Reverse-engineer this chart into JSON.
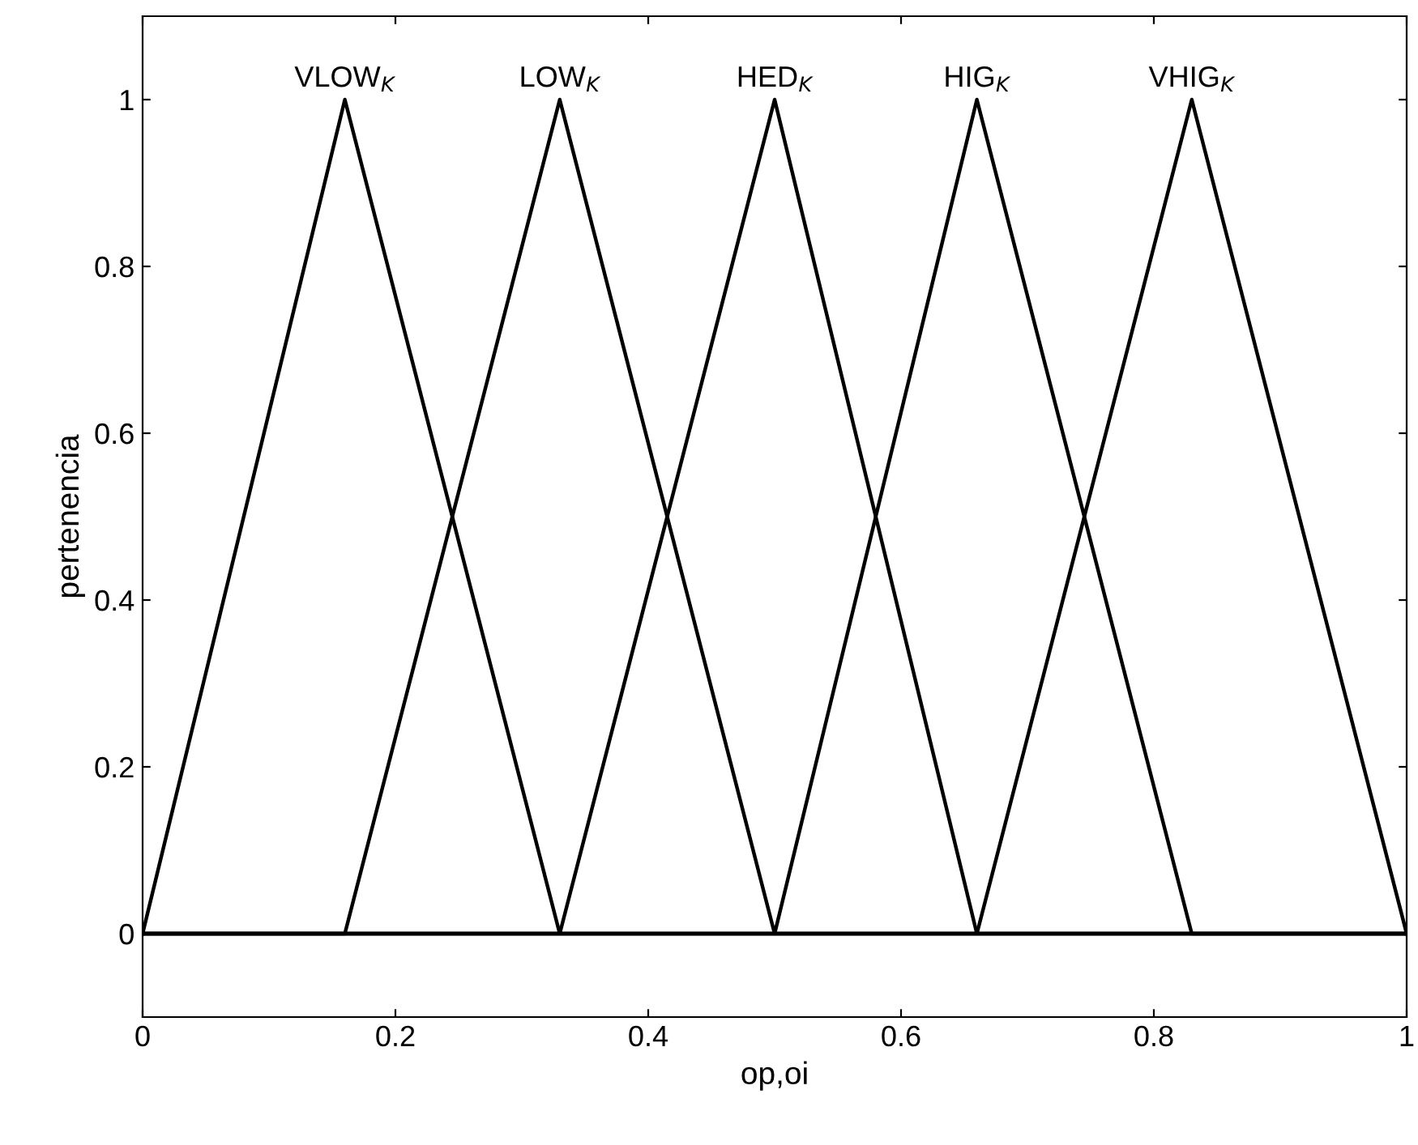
{
  "chart_data": {
    "type": "line",
    "xlabel": "op,oi",
    "ylabel": "pertenencia",
    "series": [
      {
        "name": "VLOW$_{K}$",
        "color": "#000000",
        "x": [
          0,
          0,
          0.16,
          0.33,
          1
        ],
        "values": [
          0,
          0,
          1,
          0,
          0
        ]
      },
      {
        "name": "LOW$_{K}$",
        "color": "#000000",
        "x": [
          0,
          0.16,
          0.33,
          0.5,
          1
        ],
        "values": [
          0,
          0,
          1,
          0,
          0
        ]
      },
      {
        "name": "HED$_{K}$",
        "color": "#000000",
        "x": [
          0,
          0.33,
          0.5,
          0.66,
          1
        ],
        "values": [
          0,
          0,
          1,
          0,
          0
        ]
      },
      {
        "name": "HIG$_{K}$",
        "color": "#000000",
        "x": [
          0,
          0.5,
          0.66,
          0.83,
          1
        ],
        "values": [
          0,
          0,
          1,
          0,
          0
        ]
      },
      {
        "name": "VHIG$_{K}$",
        "color": "#000000",
        "x": [
          0,
          0.66,
          0.83,
          1,
          1
        ],
        "values": [
          0,
          0,
          1,
          0,
          0
        ]
      }
    ],
    "xlim": [
      0,
      1
    ],
    "ylim": [
      -0.1,
      1.1
    ],
    "xticks": [
      0,
      0.2,
      0.4,
      0.6,
      0.8,
      1
    ],
    "yticks": [
      0,
      0.2,
      0.4,
      0.6,
      0.8,
      1
    ],
    "grid": false,
    "legend": false,
    "marker": "none",
    "line_style": "solid"
  }
}
